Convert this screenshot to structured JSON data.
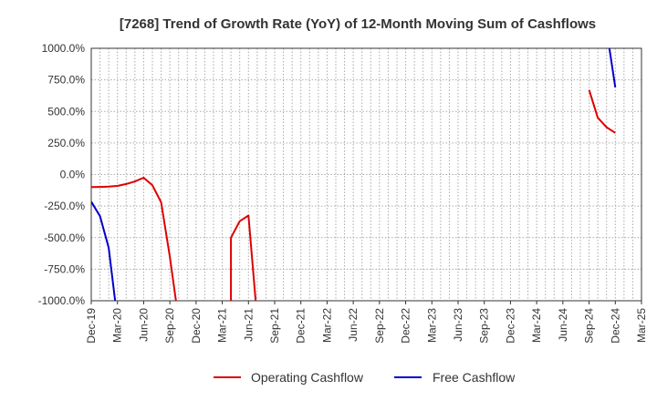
{
  "chart_data": {
    "type": "line",
    "title": "[7268]  Trend of Growth Rate (YoY) of 12-Month Moving Sum of Cashflows",
    "xlabel": "",
    "ylabel": "",
    "x_ticks": [
      "Dec-19",
      "Mar-20",
      "Jun-20",
      "Sep-20",
      "Dec-20",
      "Mar-21",
      "Jun-21",
      "Sep-21",
      "Dec-21",
      "Mar-22",
      "Jun-22",
      "Sep-22",
      "Dec-22",
      "Mar-23",
      "Jun-23",
      "Sep-23",
      "Dec-23",
      "Mar-24",
      "Jun-24",
      "Sep-24",
      "Dec-24",
      "Mar-25"
    ],
    "x_range": [
      "2019-12",
      "2025-03"
    ],
    "y_ticks": [
      "1000.0%",
      "750.0%",
      "500.0%",
      "250.0%",
      "0.0%",
      "-250.0%",
      "-500.0%",
      "-750.0%",
      "-1000.0%"
    ],
    "ylim": [
      -1000,
      1000
    ],
    "y_unit": "%",
    "grid": true,
    "legend_position": "bottom",
    "series": [
      {
        "name": "Operating Cashflow",
        "color": "#dd0000",
        "points": [
          {
            "x": "2019-12",
            "y": -100
          },
          {
            "x": "2020-01",
            "y": -98
          },
          {
            "x": "2020-02",
            "y": -95
          },
          {
            "x": "2020-03",
            "y": -90
          },
          {
            "x": "2020-04",
            "y": -75
          },
          {
            "x": "2020-05",
            "y": -55
          },
          {
            "x": "2020-06",
            "y": -25
          },
          {
            "x": "2020-07",
            "y": -85
          },
          {
            "x": "2020-08",
            "y": -220
          },
          {
            "x": "2020-09",
            "y": -650
          },
          {
            "x": "2020-10",
            "y": -1150
          },
          {
            "x": "2021-04",
            "y": -1150
          },
          {
            "x": "2021-04",
            "y": -500
          },
          {
            "x": "2021-05",
            "y": -370
          },
          {
            "x": "2021-06",
            "y": -325
          },
          {
            "x": "2021-07",
            "y": -1150
          },
          {
            "x": "2024-09",
            "y": 670
          },
          {
            "x": "2024-10",
            "y": 450
          },
          {
            "x": "2024-11",
            "y": 375
          },
          {
            "x": "2024-12",
            "y": 330
          }
        ],
        "segments": [
          [
            0,
            10
          ],
          [
            11,
            15
          ],
          [
            16,
            19
          ]
        ]
      },
      {
        "name": "Free Cashflow",
        "color": "#0000cc",
        "points": [
          {
            "x": "2019-12",
            "y": -215
          },
          {
            "x": "2020-01",
            "y": -330
          },
          {
            "x": "2020-02",
            "y": -580
          },
          {
            "x": "2020-03",
            "y": -1150
          },
          {
            "x": "2024-11",
            "y": 1150
          },
          {
            "x": "2024-12",
            "y": 690
          }
        ],
        "segments": [
          [
            0,
            3
          ],
          [
            4,
            5
          ]
        ]
      }
    ]
  }
}
